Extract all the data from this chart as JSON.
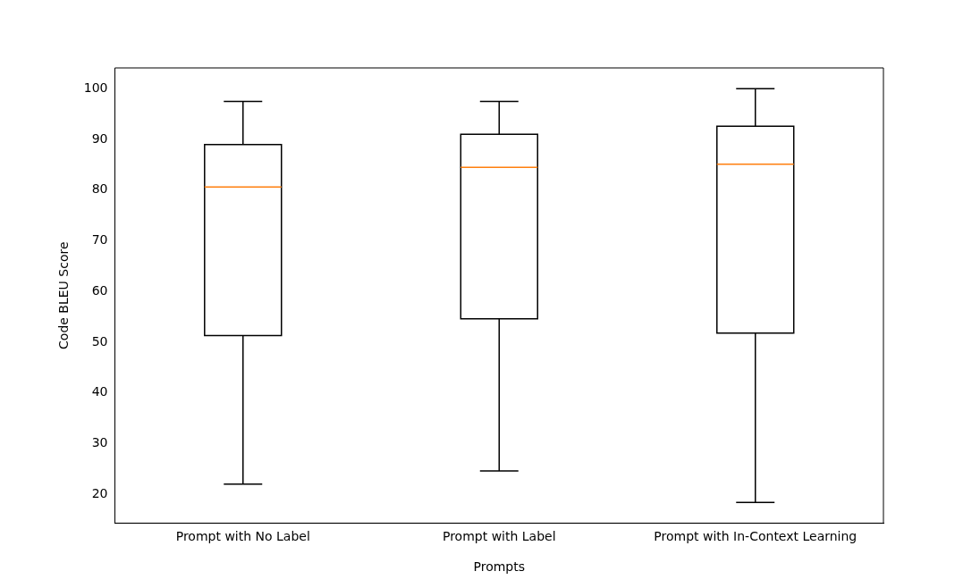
{
  "chart_data": {
    "type": "box",
    "xlabel": "Prompts",
    "ylabel": "Code BLEU Score",
    "categories": [
      "Prompt with No Label",
      "Prompt with Label",
      "Prompt with In-Context Learning"
    ],
    "boxes": [
      {
        "low": 22,
        "q1": 51.3,
        "median": 80.6,
        "q3": 89,
        "high": 97.5
      },
      {
        "low": 24.6,
        "q1": 54.6,
        "median": 84.5,
        "q3": 91,
        "high": 97.5
      },
      {
        "low": 18.4,
        "q1": 51.8,
        "median": 85.1,
        "q3": 92.6,
        "high": 100
      }
    ],
    "color": "#000000",
    "ylim": [
      14.3,
      104.1
    ],
    "yticks": [
      20,
      30,
      40,
      50,
      60,
      70,
      80,
      90,
      100
    ]
  }
}
